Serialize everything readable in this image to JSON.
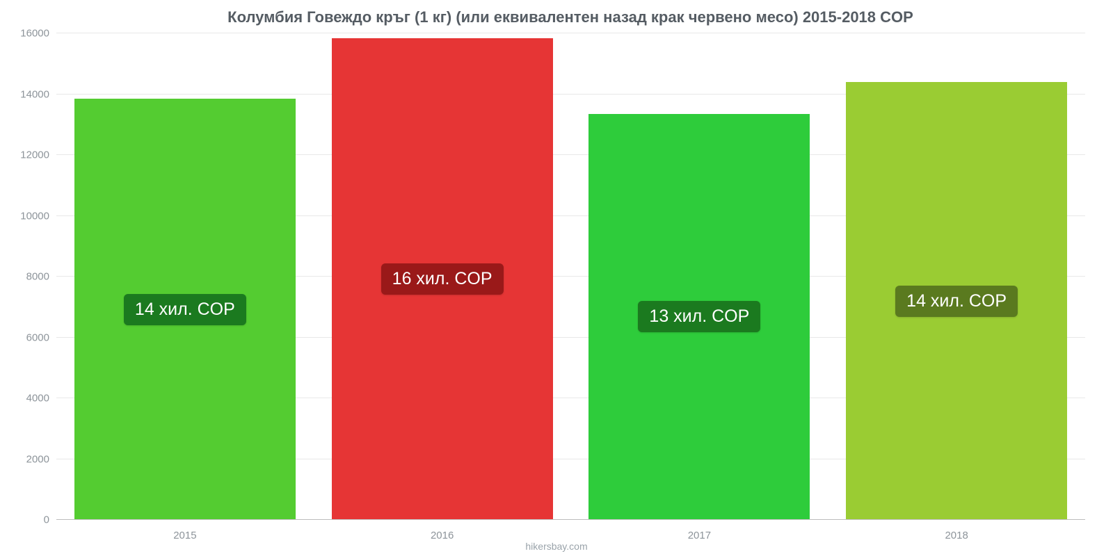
{
  "chart": {
    "type": "bar",
    "title": "Колумбия Говеждо кръг (1 кг) (или еквивалентен назад крак червено месо) 2015-2018 COP",
    "title_fontsize": 22,
    "title_color": "#555c63",
    "background_color": "#ffffff",
    "grid_color": "#e8e8e8",
    "axis_label_color": "#8d949a",
    "axis_label_fontsize": 15,
    "categories": [
      "2015",
      "2016",
      "2017",
      "2018"
    ],
    "values": [
      13850,
      15850,
      13350,
      14400
    ],
    "value_labels": [
      "14 хил. COP",
      "16 хил. COP",
      "13 хил. COP",
      "14 хил. COP"
    ],
    "bar_colors": [
      "#54cc31",
      "#e63535",
      "#2ecc3b",
      "#9acc33"
    ],
    "badge_colors": [
      "#1b7a1f",
      "#9a1919",
      "#1b7a1f",
      "#5a7a1f"
    ],
    "badge_text_color": "#ffffff",
    "badge_fontsize": 25,
    "ylim": [
      0,
      16000
    ],
    "ytick_step": 2000,
    "yticks": [
      0,
      2000,
      4000,
      6000,
      8000,
      10000,
      12000,
      14000,
      16000
    ],
    "bar_width": 0.86,
    "attribution": "hikersbay.com"
  }
}
